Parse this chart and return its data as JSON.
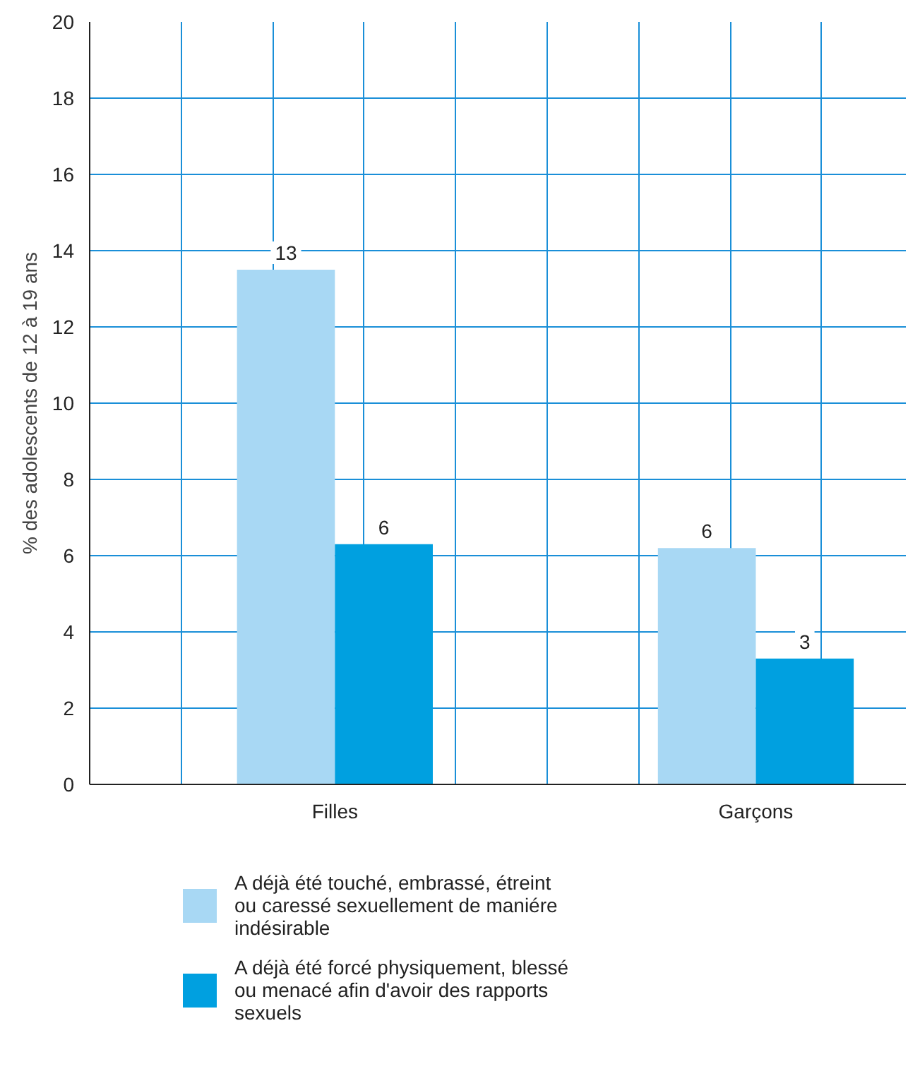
{
  "chart_data": {
    "type": "bar",
    "ylabel": "% des adolescents de 12 à 19 ans",
    "categories": [
      "Filles",
      "Garçons"
    ],
    "series": [
      {
        "name": "A déjà été touché, embrassé, étreint ou caressé sexuellement de maniére indésirable",
        "color": "#a8d8f4",
        "values": [
          13.5,
          6.2
        ],
        "value_labels": [
          "13",
          "6"
        ]
      },
      {
        "name": "A déjà été forcé physiquement, blessé ou menacé afin d'avoir des rapports sexuels",
        "color": "#00a0e0",
        "values": [
          6.3,
          3.3
        ],
        "value_labels": [
          "6",
          "3"
        ]
      }
    ],
    "ylim": [
      0,
      20
    ],
    "yticks": [
      0,
      2,
      4,
      6,
      8,
      10,
      12,
      14,
      16,
      18,
      20
    ],
    "grid": true,
    "legend": "bottom"
  }
}
